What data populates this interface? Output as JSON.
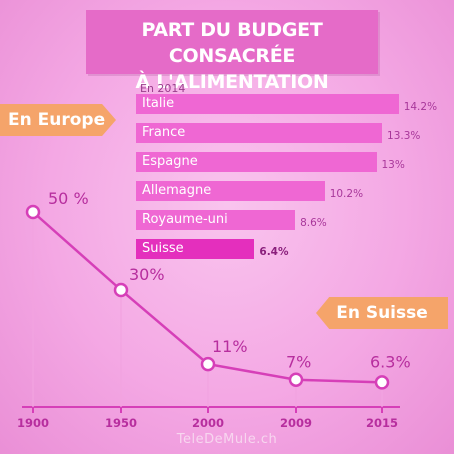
{
  "title": {
    "line1": "PART DU BUDGET CONSACRÉE",
    "line2": "À L'ALIMENTATION"
  },
  "europe_tag": "En Europe",
  "suisse_tag": "En Suisse",
  "footer": "TeleDeMule.ch",
  "colors": {
    "bar_main": "#ef67d3",
    "bar_highlight": "#e42fbd",
    "line": "#d63fb8",
    "tag": "#f5a46a"
  },
  "chart_data": [
    {
      "type": "bar",
      "orientation": "horizontal",
      "subtitle": "En 2014",
      "categories": [
        "Italie",
        "France",
        "Espagne",
        "Allemagne",
        "Royaume-uni",
        "Suisse"
      ],
      "values": [
        14.2,
        13.3,
        13,
        10.2,
        8.6,
        6.4
      ],
      "value_labels": [
        "14.2%",
        "13.3%",
        "13%",
        "10.2%",
        "8.6%",
        "6.4%"
      ],
      "highlight": "Suisse"
    },
    {
      "type": "line",
      "x": [
        1900,
        1950,
        2000,
        2009,
        2015
      ],
      "x_tick_labels": [
        "1900",
        "1950",
        "2000",
        "2009",
        "2015"
      ],
      "y": [
        50,
        30,
        11,
        7,
        6.3
      ],
      "point_labels": [
        "50 %",
        "30%",
        "11%",
        "7%",
        "6.3%"
      ]
    }
  ]
}
